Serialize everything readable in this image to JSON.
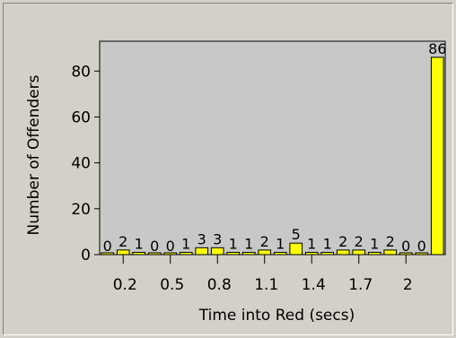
{
  "chart_data": {
    "type": "bar",
    "title": "",
    "xlabel": "Time into Red (secs)",
    "ylabel": "Number of Offenders",
    "x_tick_labels": [
      "0.2",
      "0.5",
      "0.8",
      "1.1",
      "1.4",
      "1.7",
      "2"
    ],
    "y_tick_labels": [
      "0",
      "20",
      "40",
      "60",
      "80"
    ],
    "ylim": [
      0,
      93
    ],
    "grid": false,
    "values": [
      0,
      2,
      1,
      0,
      0,
      1,
      3,
      3,
      1,
      1,
      2,
      1,
      5,
      1,
      1,
      2,
      2,
      1,
      2,
      0,
      0,
      86
    ],
    "data_labels": [
      "0",
      "2",
      "1",
      "0",
      "0",
      "1",
      "3",
      "3",
      "1",
      "1",
      "2",
      "1",
      "5",
      "1",
      "1",
      "2",
      "2",
      "1",
      "2",
      "0",
      "0",
      "86"
    ],
    "colors": {
      "bar": "#ffff00",
      "plot_background": "#c8c8c8",
      "window_background": "#d4d0c8"
    }
  }
}
